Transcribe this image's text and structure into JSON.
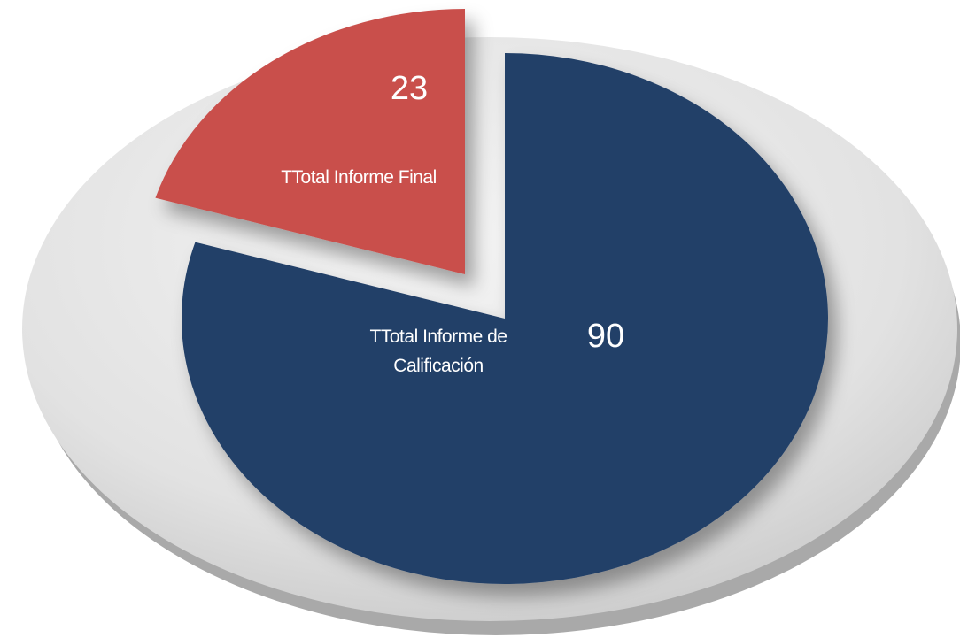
{
  "chart_data": {
    "type": "pie",
    "categories": [
      "TTotal Informe Final",
      "TTotal Informe de Calificación"
    ],
    "values": [
      23,
      90
    ],
    "colors": [
      "#c9504c",
      "#213f68"
    ]
  }
}
